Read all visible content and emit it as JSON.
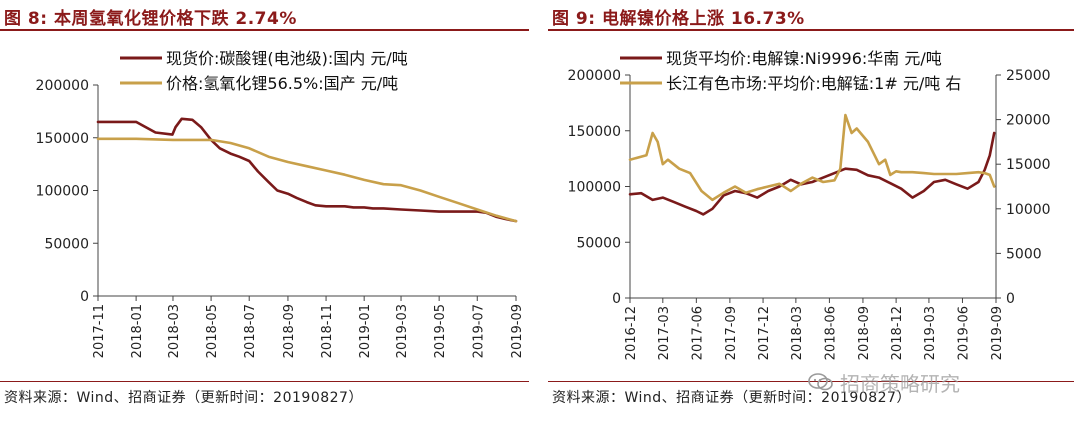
{
  "left": {
    "title": "图 8:  本周氢氧化锂价格下跌 2.74%",
    "source": "资料来源：Wind、招商证券（更新时间：20190827）"
  },
  "right": {
    "title": "图 9:  电解镍价格上涨 16.73%",
    "source": "资料来源：Wind、招商证券（更新时间：20190827）"
  },
  "watermark": "招商策略研究",
  "colors": {
    "dark_red": "#7a1a1a",
    "gold": "#c8a04a",
    "title_red": "#8b1a1a"
  },
  "chart_data": [
    {
      "type": "line",
      "legend_position": "top-inside",
      "grid": false,
      "ylim": [
        0,
        200000
      ],
      "yticks": [
        0,
        50000,
        100000,
        150000,
        200000
      ],
      "ytick_labels": [
        "0",
        "50000",
        "100000",
        "150000",
        "200000"
      ],
      "x_range": [
        "2017-11",
        "2019-09"
      ],
      "xtick_labels": [
        "2017-11",
        "2018-01",
        "2018-03",
        "2018-05",
        "2018-07",
        "2018-09",
        "2018-11",
        "2019-01",
        "2019-03",
        "2019-05",
        "2019-07",
        "2019-09"
      ],
      "series": [
        {
          "name": "现货价:碳酸锂(电池级):国内 元/吨",
          "color": "#7a1a1a",
          "x": [
            "2017-11-01",
            "2018-01-01",
            "2018-02-01",
            "2018-02-28",
            "2018-03-05",
            "2018-03-15",
            "2018-04-01",
            "2018-04-15",
            "2018-05-01",
            "2018-05-15",
            "2018-06-01",
            "2018-06-15",
            "2018-07-01",
            "2018-07-15",
            "2018-08-01",
            "2018-08-15",
            "2018-09-01",
            "2018-09-15",
            "2018-10-01",
            "2018-10-15",
            "2018-11-01",
            "2018-11-15",
            "2018-12-01",
            "2018-12-15",
            "2019-01-01",
            "2019-01-15",
            "2019-02-01",
            "2019-03-01",
            "2019-04-01",
            "2019-05-01",
            "2019-06-01",
            "2019-06-15",
            "2019-07-01",
            "2019-07-15",
            "2019-08-01",
            "2019-08-15",
            "2019-09-01"
          ],
          "values": [
            165000,
            165000,
            155000,
            153000,
            160000,
            168000,
            167000,
            160000,
            148000,
            140000,
            135000,
            132000,
            128000,
            118000,
            108000,
            100000,
            97000,
            93000,
            89000,
            86000,
            85000,
            85000,
            85000,
            84000,
            84000,
            83000,
            83000,
            82000,
            81000,
            80000,
            80000,
            80000,
            80000,
            79000,
            75000,
            73000,
            71000
          ]
        },
        {
          "name": "价格:氢氧化锂56.5%:国产 元/吨",
          "color": "#c8a04a",
          "x": [
            "2017-11-01",
            "2018-01-01",
            "2018-03-01",
            "2018-05-01",
            "2018-06-01",
            "2018-07-01",
            "2018-08-01",
            "2018-09-01",
            "2018-10-01",
            "2018-11-01",
            "2018-12-01",
            "2019-01-01",
            "2019-02-01",
            "2019-03-01",
            "2019-04-01",
            "2019-05-01",
            "2019-06-01",
            "2019-07-01",
            "2019-08-01",
            "2019-09-01"
          ],
          "values": [
            149000,
            149000,
            148000,
            148000,
            145000,
            140000,
            132000,
            127000,
            123000,
            119000,
            115000,
            110000,
            106000,
            105000,
            100000,
            94000,
            88000,
            82000,
            76000,
            71000
          ]
        }
      ]
    },
    {
      "type": "line",
      "legend_position": "top-inside",
      "grid": false,
      "ylim": [
        0,
        200000
      ],
      "yticks": [
        0,
        50000,
        100000,
        150000,
        200000
      ],
      "ytick_labels": [
        "0",
        "50000",
        "100000",
        "150000",
        "200000"
      ],
      "y2lim": [
        0,
        25000
      ],
      "y2ticks": [
        0,
        5000,
        10000,
        15000,
        20000,
        25000
      ],
      "y2tick_labels": [
        "0",
        "5000",
        "10000",
        "15000",
        "20000",
        "25000"
      ],
      "x_range": [
        "2016-12",
        "2019-09"
      ],
      "xtick_labels": [
        "2016-12",
        "2017-03",
        "2017-06",
        "2017-09",
        "2017-12",
        "2018-03",
        "2018-06",
        "2018-09",
        "2018-12",
        "2019-03",
        "2019-06",
        "2019-09"
      ],
      "series": [
        {
          "name": "现货平均价:电解镍:Ni9996:华南 元/吨",
          "color": "#7a1a1a",
          "axis": "left",
          "x": [
            "2016-12-01",
            "2017-01-01",
            "2017-02-01",
            "2017-03-01",
            "2017-04-01",
            "2017-05-01",
            "2017-06-01",
            "2017-06-20",
            "2017-07-15",
            "2017-08-15",
            "2017-09-15",
            "2017-10-15",
            "2017-11-15",
            "2017-12-15",
            "2018-01-15",
            "2018-02-15",
            "2018-03-15",
            "2018-04-15",
            "2018-05-15",
            "2018-06-15",
            "2018-07-15",
            "2018-08-15",
            "2018-09-15",
            "2018-10-15",
            "2018-11-15",
            "2018-12-15",
            "2019-01-15",
            "2019-02-15",
            "2019-03-15",
            "2019-04-15",
            "2019-05-15",
            "2019-06-15",
            "2019-07-15",
            "2019-08-01",
            "2019-08-15",
            "2019-08-27"
          ],
          "values": [
            93000,
            94000,
            88000,
            90000,
            86000,
            82000,
            78000,
            75000,
            80000,
            92000,
            96000,
            94000,
            90000,
            96000,
            100000,
            106000,
            102000,
            104000,
            108000,
            112000,
            116000,
            115000,
            110000,
            108000,
            103000,
            98000,
            90000,
            96000,
            104000,
            106000,
            102000,
            98000,
            104000,
            115000,
            128000,
            148000
          ]
        },
        {
          "name": "长江有色市场:平均价:电解锰:1# 元/吨 右",
          "color": "#c8a04a",
          "axis": "right",
          "x": [
            "2016-12-01",
            "2017-01-15",
            "2017-02-01",
            "2017-02-15",
            "2017-03-01",
            "2017-03-15",
            "2017-04-15",
            "2017-05-15",
            "2017-06-15",
            "2017-07-15",
            "2017-08-15",
            "2017-09-15",
            "2017-10-15",
            "2017-11-15",
            "2017-12-15",
            "2018-01-15",
            "2018-02-15",
            "2018-03-15",
            "2018-04-15",
            "2018-05-15",
            "2018-06-15",
            "2018-07-01",
            "2018-07-15",
            "2018-08-01",
            "2018-08-15",
            "2018-09-15",
            "2018-10-15",
            "2018-11-01",
            "2018-11-15",
            "2018-12-01",
            "2018-12-15",
            "2019-01-15",
            "2019-02-15",
            "2019-03-15",
            "2019-04-15",
            "2019-05-15",
            "2019-06-15",
            "2019-07-15",
            "2019-08-01",
            "2019-08-15",
            "2019-08-27"
          ],
          "values": [
            15500,
            16000,
            18500,
            17500,
            15000,
            15500,
            14500,
            14000,
            12000,
            11000,
            11800,
            12500,
            11800,
            12200,
            12500,
            12800,
            12000,
            12800,
            13500,
            13000,
            13200,
            14500,
            20500,
            18500,
            19000,
            17500,
            15000,
            15500,
            13800,
            14200,
            14100,
            14100,
            14000,
            13900,
            13900,
            13900,
            14000,
            14100,
            14000,
            13800,
            12500
          ]
        }
      ]
    }
  ]
}
